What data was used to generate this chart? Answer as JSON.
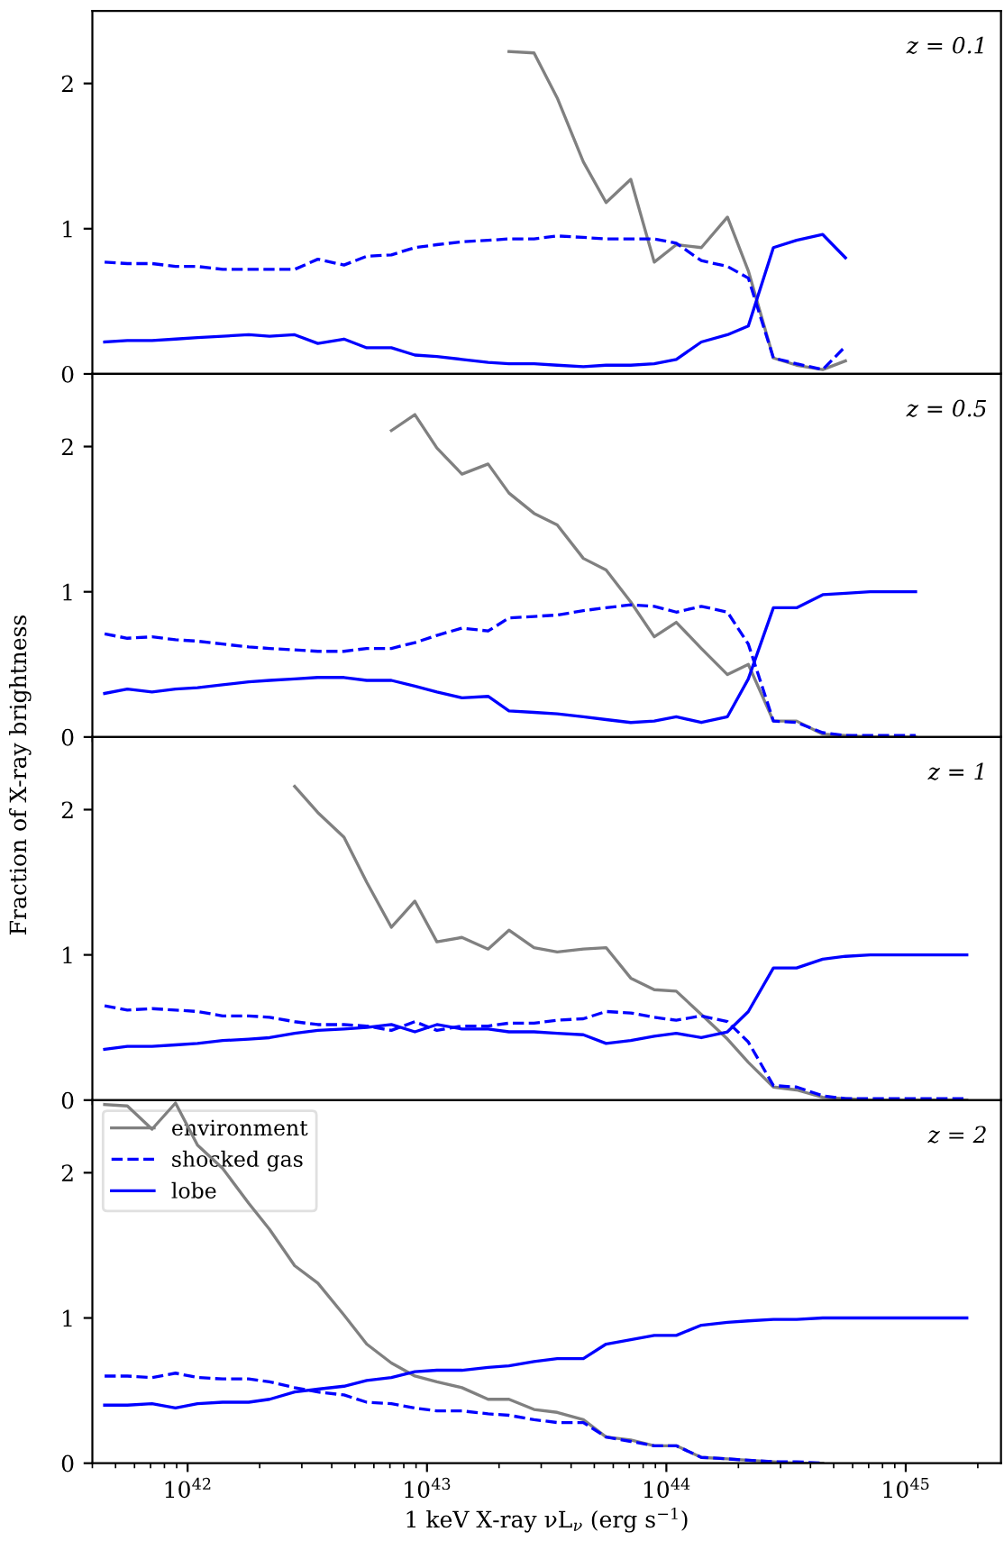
{
  "chart_data": [
    {
      "type": "line",
      "annotations": [
        "z = 0.1"
      ],
      "ylim": [
        0,
        2.5
      ],
      "yticks": [
        0,
        1,
        2
      ],
      "xlim": [
        4e+41,
        2.5e+45
      ],
      "log": "x",
      "tick_labels": "y",
      "grid": false,
      "legend": false,
      "xticks": [
        {
          "value": 1e+42,
          "label": null
        },
        {
          "value": 1e+43,
          "label": null
        },
        {
          "value": 1e+44,
          "label": null
        },
        {
          "value": 1e+45,
          "label": null
        }
      ],
      "x": [
        4.5e+41,
        5.6e+41,
        7.1e+41,
        8.9e+41,
        1.1e+42,
        1.4e+42,
        1.8e+42,
        2.2e+42,
        2.8e+42,
        3.5e+42,
        4.5e+42,
        5.6e+42,
        7.1e+42,
        8.9e+42,
        1.1e+43,
        1.4e+43,
        1.8e+43,
        2.2e+43,
        2.8e+43,
        3.5e+43,
        4.5e+43,
        5.6e+43,
        7.1e+43,
        8.9e+43,
        1.1e+44,
        1.4e+44,
        1.8e+44,
        2.2e+44,
        2.8e+44,
        3.5e+44,
        4.5e+44,
        5.6e+44
      ],
      "series": [
        {
          "color": "#808080",
          "line_style": "solid",
          "values": [
            null,
            null,
            null,
            null,
            null,
            null,
            null,
            null,
            null,
            null,
            null,
            null,
            null,
            null,
            null,
            null,
            null,
            2.22,
            2.21,
            1.9,
            1.46,
            1.18,
            1.34,
            0.77,
            0.89,
            0.87,
            1.08,
            0.71,
            0.11,
            0.06,
            0.03,
            0.09
          ]
        },
        {
          "color": "#0000ff",
          "line_style": "dashed",
          "values": [
            0.77,
            0.76,
            0.76,
            0.74,
            0.74,
            0.72,
            0.72,
            0.72,
            0.72,
            0.79,
            0.75,
            0.81,
            0.82,
            0.87,
            0.89,
            0.91,
            0.92,
            0.93,
            0.93,
            0.95,
            0.94,
            0.93,
            0.93,
            0.93,
            0.9,
            0.78,
            0.74,
            0.66,
            0.11,
            0.07,
            0.03,
            0.19
          ]
        },
        {
          "color": "#0000ff",
          "line_style": "solid",
          "values": [
            0.22,
            0.23,
            0.23,
            0.24,
            0.25,
            0.26,
            0.27,
            0.26,
            0.27,
            0.21,
            0.24,
            0.18,
            0.18,
            0.13,
            0.12,
            0.1,
            0.08,
            0.07,
            0.07,
            0.06,
            0.05,
            0.06,
            0.06,
            0.07,
            0.1,
            0.22,
            0.27,
            0.33,
            0.87,
            0.92,
            0.96,
            0.8
          ]
        }
      ]
    },
    {
      "type": "line",
      "annotations": [
        "z = 0.5"
      ],
      "ylabel": "Fraction of X-ray brightness",
      "ylim": [
        0,
        2.5
      ],
      "yticks": [
        0,
        1,
        2
      ],
      "xlim": [
        4e+41,
        2.5e+45
      ],
      "log": "x",
      "tick_labels": "y",
      "grid": false,
      "legend": false,
      "xticks": [
        {
          "value": 1e+42,
          "label": null
        },
        {
          "value": 1e+43,
          "label": null
        },
        {
          "value": 1e+44,
          "label": null
        },
        {
          "value": 1e+45,
          "label": null
        }
      ],
      "x": [
        4.5e+41,
        5.6e+41,
        7.1e+41,
        8.9e+41,
        1.1e+42,
        1.4e+42,
        1.8e+42,
        2.2e+42,
        2.8e+42,
        3.5e+42,
        4.5e+42,
        5.6e+42,
        7.1e+42,
        8.9e+42,
        1.1e+43,
        1.4e+43,
        1.8e+43,
        2.2e+43,
        2.8e+43,
        3.5e+43,
        4.5e+43,
        5.6e+43,
        7.1e+43,
        8.9e+43,
        1.1e+44,
        1.4e+44,
        1.8e+44,
        2.2e+44,
        2.8e+44,
        3.5e+44,
        4.5e+44,
        5.6e+44,
        7.1e+44,
        8.9e+44,
        1.1e+45
      ],
      "series": [
        {
          "color": "#808080",
          "line_style": "solid",
          "values": [
            null,
            null,
            null,
            null,
            null,
            null,
            null,
            null,
            null,
            null,
            null,
            null,
            2.11,
            2.22,
            1.99,
            1.81,
            1.88,
            1.68,
            1.54,
            1.46,
            1.23,
            1.15,
            0.93,
            0.69,
            0.79,
            0.61,
            0.43,
            0.5,
            0.11,
            0.11,
            0.02,
            0.01,
            0,
            0,
            0
          ]
        },
        {
          "color": "#0000ff",
          "line_style": "dashed",
          "values": [
            0.71,
            0.68,
            0.69,
            0.67,
            0.66,
            0.64,
            0.62,
            0.61,
            0.6,
            0.59,
            0.59,
            0.61,
            0.61,
            0.65,
            0.7,
            0.75,
            0.73,
            0.82,
            0.83,
            0.84,
            0.87,
            0.89,
            0.91,
            0.9,
            0.86,
            0.9,
            0.86,
            0.64,
            0.11,
            0.1,
            0.03,
            0.01,
            0.01,
            0.01,
            0.01
          ]
        },
        {
          "color": "#0000ff",
          "line_style": "solid",
          "values": [
            0.3,
            0.33,
            0.31,
            0.33,
            0.34,
            0.36,
            0.38,
            0.39,
            0.4,
            0.41,
            0.41,
            0.39,
            0.39,
            0.35,
            0.31,
            0.27,
            0.28,
            0.18,
            0.17,
            0.16,
            0.14,
            0.12,
            0.1,
            0.11,
            0.14,
            0.1,
            0.14,
            0.4,
            0.89,
            0.89,
            0.98,
            0.99,
            1.0,
            1.0,
            1.0
          ]
        }
      ]
    },
    {
      "type": "line",
      "annotations": [
        "z = 1"
      ],
      "ylim": [
        0,
        2.5
      ],
      "yticks": [
        0,
        1,
        2
      ],
      "xlim": [
        4e+41,
        2.5e+45
      ],
      "log": "x",
      "tick_labels": "y",
      "grid": false,
      "legend": false,
      "xticks": [
        {
          "value": 1e+42,
          "label": null
        },
        {
          "value": 1e+43,
          "label": null
        },
        {
          "value": 1e+44,
          "label": null
        },
        {
          "value": 1e+45,
          "label": null
        }
      ],
      "x": [
        4.5e+41,
        5.6e+41,
        7.1e+41,
        8.9e+41,
        1.1e+42,
        1.4e+42,
        1.8e+42,
        2.2e+42,
        2.8e+42,
        3.5e+42,
        4.5e+42,
        5.6e+42,
        7.1e+42,
        8.9e+42,
        1.1e+43,
        1.4e+43,
        1.8e+43,
        2.2e+43,
        2.8e+43,
        3.5e+43,
        4.5e+43,
        5.6e+43,
        7.1e+43,
        8.9e+43,
        1.1e+44,
        1.4e+44,
        1.8e+44,
        2.2e+44,
        2.8e+44,
        3.5e+44,
        4.5e+44,
        5.6e+44,
        7.1e+44,
        8.9e+44,
        1.1e+45,
        1.4e+45,
        1.8e+45
      ],
      "series": [
        {
          "color": "#808080",
          "line_style": "solid",
          "values": [
            null,
            null,
            null,
            null,
            null,
            null,
            null,
            null,
            2.16,
            1.98,
            1.81,
            1.5,
            1.19,
            1.37,
            1.09,
            1.12,
            1.04,
            1.17,
            1.05,
            1.02,
            1.04,
            1.05,
            0.84,
            0.76,
            0.75,
            0.59,
            0.42,
            0.26,
            0.09,
            0.07,
            0.02,
            0.01,
            0,
            0,
            0,
            0,
            0
          ]
        },
        {
          "color": "#0000ff",
          "line_style": "dashed",
          "values": [
            0.65,
            0.62,
            0.63,
            0.62,
            0.61,
            0.58,
            0.58,
            0.57,
            0.54,
            0.52,
            0.52,
            0.51,
            0.48,
            0.54,
            0.48,
            0.51,
            0.51,
            0.53,
            0.53,
            0.55,
            0.56,
            0.61,
            0.6,
            0.57,
            0.55,
            0.58,
            0.54,
            0.4,
            0.1,
            0.09,
            0.03,
            0.01,
            0.01,
            0.01,
            0.01,
            0.01,
            0.01
          ]
        },
        {
          "color": "#0000ff",
          "line_style": "solid",
          "values": [
            0.35,
            0.37,
            0.37,
            0.38,
            0.39,
            0.41,
            0.42,
            0.43,
            0.46,
            0.48,
            0.49,
            0.5,
            0.52,
            0.47,
            0.52,
            0.49,
            0.49,
            0.47,
            0.47,
            0.46,
            0.45,
            0.39,
            0.41,
            0.44,
            0.46,
            0.43,
            0.47,
            0.61,
            0.91,
            0.91,
            0.97,
            0.99,
            1.0,
            1.0,
            1.0,
            1.0,
            1.0
          ]
        }
      ]
    },
    {
      "type": "line",
      "annotations": [
        "z = 2"
      ],
      "xlabel": "1 keV X-ray νL$_{ν}$ (erg s$^{−1}$)",
      "ylim": [
        0,
        2.5
      ],
      "yticks": [
        0,
        1,
        2
      ],
      "xlim": [
        4e+41,
        2.5e+45
      ],
      "log": "x",
      "grid": false,
      "legend": "top left",
      "xticks": [
        {
          "value": 1e+42,
          "label": "10$^{42}$"
        },
        {
          "value": 1e+43,
          "label": "10$^{43}$"
        },
        {
          "value": 1e+44,
          "label": "10$^{44}$"
        },
        {
          "value": 1e+45,
          "label": "10$^{45}$"
        }
      ],
      "x": [
        4.5e+41,
        5.6e+41,
        7.1e+41,
        8.9e+41,
        1.1e+42,
        1.4e+42,
        1.8e+42,
        2.2e+42,
        2.8e+42,
        3.5e+42,
        4.5e+42,
        5.6e+42,
        7.1e+42,
        8.9e+42,
        1.1e+43,
        1.4e+43,
        1.8e+43,
        2.2e+43,
        2.8e+43,
        3.5e+43,
        4.5e+43,
        5.6e+43,
        7.1e+43,
        8.9e+43,
        1.1e+44,
        1.4e+44,
        1.8e+44,
        2.2e+44,
        2.8e+44,
        3.5e+44,
        4.5e+44,
        5.6e+44,
        7.1e+44,
        8.9e+44,
        1.1e+45,
        1.4e+45,
        1.8e+45
      ],
      "series": [
        {
          "name": "environment",
          "color": "#808080",
          "line_style": "solid",
          "values": [
            2.47,
            2.46,
            2.3,
            2.48,
            2.19,
            2.03,
            1.79,
            1.61,
            1.36,
            1.24,
            1.02,
            0.82,
            0.69,
            0.6,
            0.56,
            0.52,
            0.44,
            0.44,
            0.37,
            0.35,
            0.3,
            0.18,
            0.16,
            0.12,
            0.12,
            0.04,
            0.03,
            0.02,
            0.01,
            0,
            0,
            null,
            null,
            null,
            null,
            null,
            null
          ]
        },
        {
          "name": "shocked gas",
          "color": "#0000ff",
          "line_style": "dashed",
          "values": [
            0.6,
            0.6,
            0.59,
            0.62,
            0.59,
            0.58,
            0.58,
            0.56,
            0.52,
            0.49,
            0.47,
            0.42,
            0.41,
            0.38,
            0.36,
            0.36,
            0.34,
            0.33,
            0.3,
            0.28,
            0.28,
            0.18,
            0.15,
            0.12,
            0.12,
            0.04,
            0.03,
            0.02,
            0.01,
            0.01,
            0,
            null,
            null,
            null,
            null,
            null,
            null
          ]
        },
        {
          "name": "lobe",
          "color": "#0000ff",
          "line_style": "solid",
          "values": [
            0.4,
            0.4,
            0.41,
            0.38,
            0.41,
            0.42,
            0.42,
            0.44,
            0.49,
            0.51,
            0.53,
            0.57,
            0.59,
            0.63,
            0.64,
            0.64,
            0.66,
            0.67,
            0.7,
            0.72,
            0.72,
            0.82,
            0.85,
            0.88,
            0.88,
            0.95,
            0.97,
            0.98,
            0.99,
            0.99,
            1.0,
            1.0,
            1.0,
            1.0,
            1.0,
            1.0,
            1.0
          ]
        }
      ]
    }
  ]
}
